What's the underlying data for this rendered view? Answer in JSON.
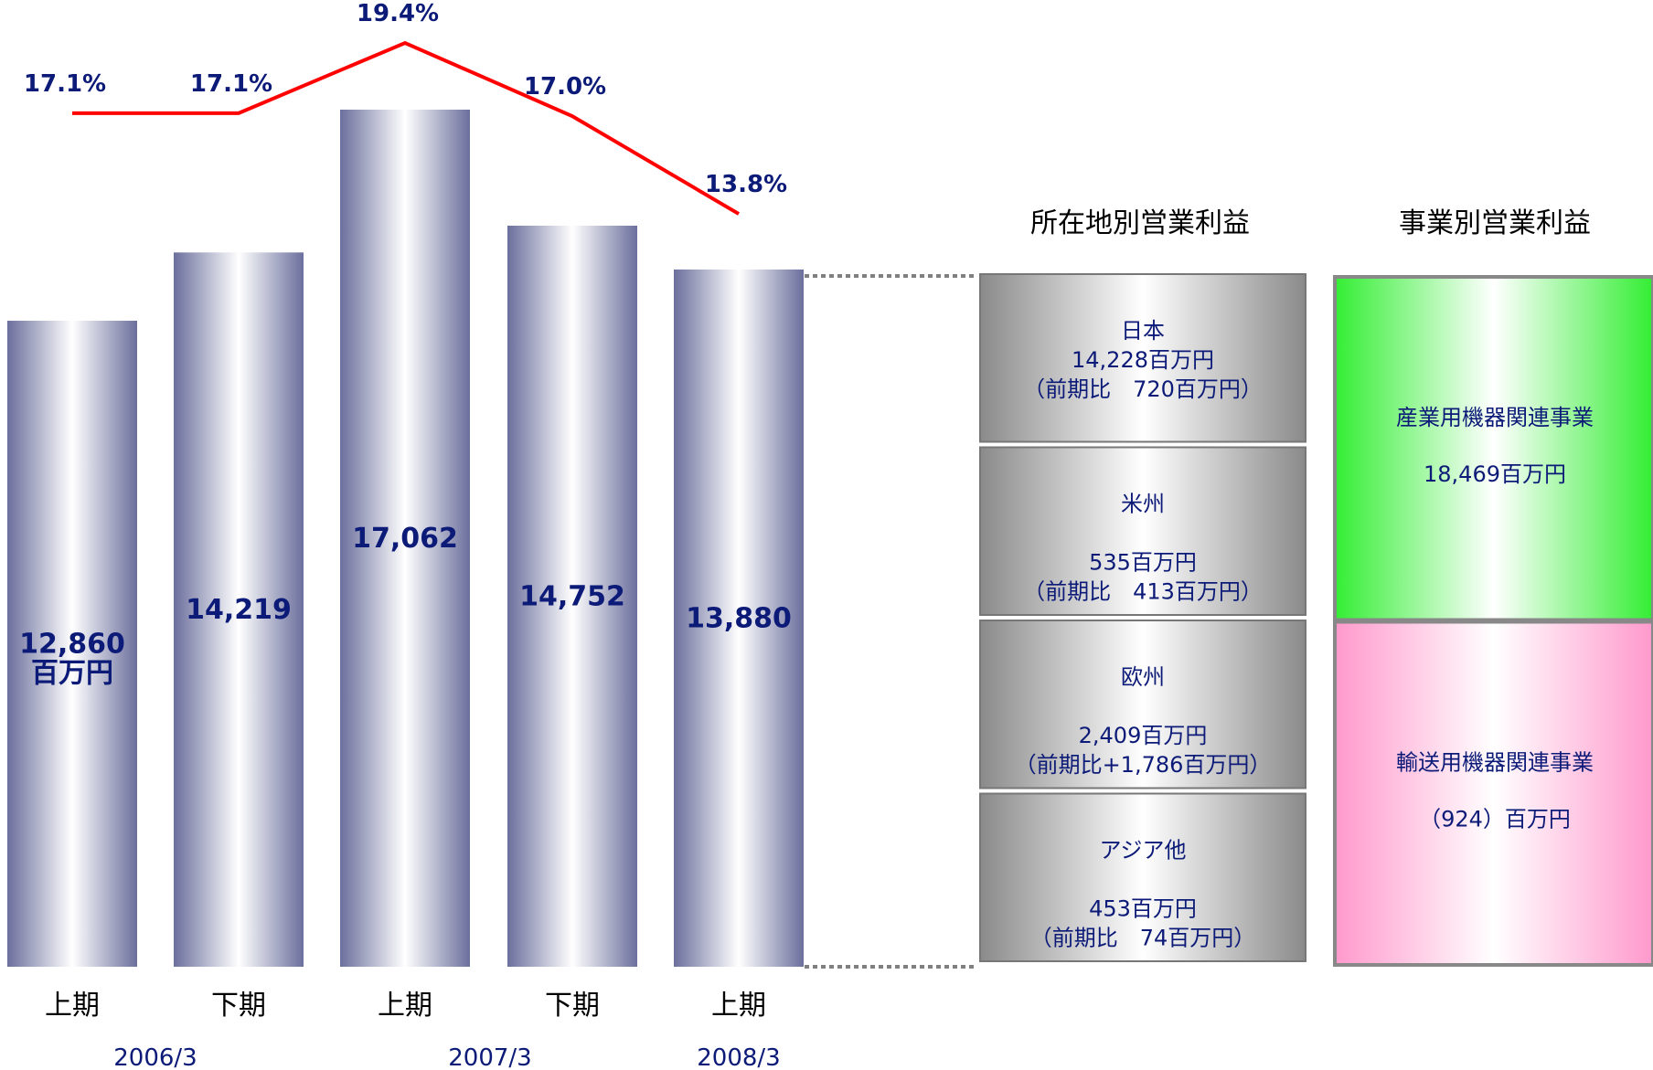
{
  "chart_data": [
    {
      "type": "bar",
      "categories": [
        "上期",
        "下期",
        "上期",
        "下期",
        "上期"
      ],
      "years": [
        "2006/3",
        "2007/3",
        "2008/3"
      ],
      "values": [
        12860,
        14219,
        17062,
        14752,
        13880
      ],
      "value_labels": [
        "12,860",
        "14,219",
        "17,062",
        "14,752",
        "13,880"
      ],
      "first_label_unit": "百万円",
      "ylim": [
        0,
        20000
      ],
      "line_series": {
        "values": [
          17.1,
          17.1,
          19.4,
          17.0,
          13.8
        ],
        "labels": [
          "17.1%",
          "17.1%",
          "19.4%",
          "17.0%",
          "13.8%"
        ],
        "color": "#ff0000"
      },
      "bar_color": "#6b6f9c"
    },
    {
      "type": "table",
      "title": "所在地別営業利益",
      "segments": [
        {
          "name": "日本",
          "value": "14,228百万円",
          "note": "（前期比　720百万円）"
        },
        {
          "name": "米州",
          "value": "535百万円",
          "note": "（前期比　413百万円）"
        },
        {
          "name": "欧州",
          "value": "2,409百万円",
          "note": "（前期比+1,786百万円）"
        },
        {
          "name": "アジア他",
          "value": "453百万円",
          "note": "（前期比　74百万円）"
        }
      ]
    },
    {
      "type": "table",
      "title": "事業別営業利益",
      "segments": [
        {
          "name": "産業用機器関連事業",
          "value": "18,469百万円",
          "color": "#33ee33"
        },
        {
          "name": "輸送用機器関連事業",
          "value": "（924）百万円",
          "color": "#ff99cc"
        }
      ]
    }
  ]
}
